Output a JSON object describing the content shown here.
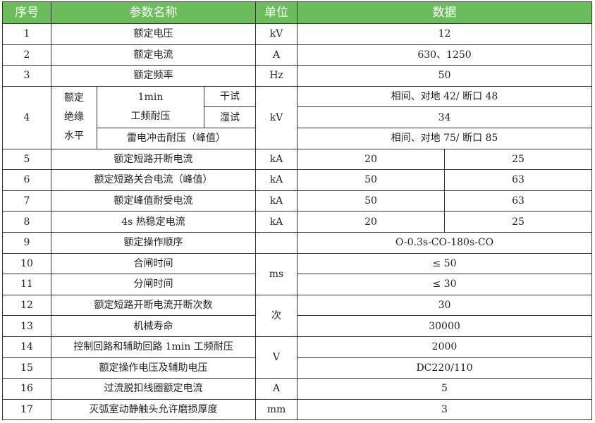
{
  "header": {
    "seq": "序号",
    "name": "参数名称",
    "unit": "单位",
    "data": "数据"
  },
  "header_color": "#6bbd5b",
  "rows": {
    "r1": {
      "seq": "1",
      "name": "额定电压",
      "unit": "kV",
      "value": "12"
    },
    "r2": {
      "seq": "2",
      "name": "额定电流",
      "unit": "A",
      "value": "630、1250"
    },
    "r3": {
      "seq": "3",
      "name": "额定频率",
      "unit": "Hz",
      "value": "50"
    },
    "r4": {
      "seq": "4",
      "group_label": [
        "额定",
        "绝缘",
        "水平"
      ],
      "power_freq_label": "1min",
      "power_freq_label2": "工频耐压",
      "dry": "干试",
      "dry_value": "相间、对地 42/ 断口 48",
      "wet": "湿试",
      "wet_value": "34",
      "lightning": "雷电冲击耐压（峰值）",
      "lightning_value": "相间、对地 75/ 断口 85",
      "unit": "kV"
    },
    "r5": {
      "seq": "5",
      "name": "额定短路开断电流",
      "unit": "kA",
      "v1": "20",
      "v2": "25"
    },
    "r6": {
      "seq": "6",
      "name": "额定短路关合电流（峰值）",
      "unit": "kA",
      "v1": "50",
      "v2": "63"
    },
    "r7": {
      "seq": "7",
      "name": "额定峰值耐受电流",
      "unit": "kA",
      "v1": "50",
      "v2": "63"
    },
    "r8": {
      "seq": "8",
      "name": "4s 热稳定电流",
      "unit": "kA",
      "v1": "20",
      "v2": "25"
    },
    "r9": {
      "seq": "9",
      "name": "额定操作顺序",
      "unit": "",
      "value": "O-0.3s-CO-180s-CO"
    },
    "r10": {
      "seq": "10",
      "name": "合闸时间",
      "unit": "ms",
      "value": "≤ 50"
    },
    "r11": {
      "seq": "11",
      "name": "分闸时间",
      "value": "≤ 30"
    },
    "r12": {
      "seq": "12",
      "name": "额定短路开断电流开断次数",
      "unit": "次",
      "value": "30"
    },
    "r13": {
      "seq": "13",
      "name": "机械寿命",
      "value": "30000"
    },
    "r14": {
      "seq": "14",
      "name": "控制回路和辅助回路 1min 工频耐压",
      "unit": "V",
      "value": "2000"
    },
    "r15": {
      "seq": "15",
      "name": "额定操作电压及辅助电压",
      "value": "DC220/110"
    },
    "r16": {
      "seq": "16",
      "name": "过流脱扣线圈额定电流",
      "unit": "A",
      "value": "5"
    },
    "r17": {
      "seq": "17",
      "name": "灭弧室动静触头允许磨损厚度",
      "unit": "mm",
      "value": "3"
    }
  }
}
